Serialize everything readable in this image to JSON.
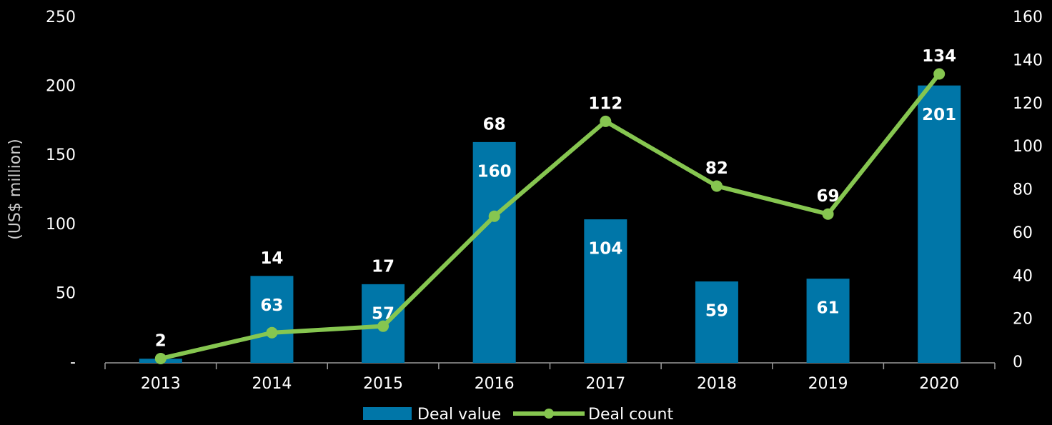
{
  "chart_data": {
    "type": "bar_line",
    "y_label": "(US$ million)",
    "categories": [
      "2013",
      "2014",
      "2015",
      "2016",
      "2017",
      "2018",
      "2019",
      "2020"
    ],
    "series": [
      {
        "name": "Deal value",
        "color": "#0076a8",
        "type": "bar",
        "values": [
          3,
          63,
          57,
          160,
          104,
          59,
          61,
          201
        ],
        "value_labels": [
          null,
          "63",
          "57",
          "160",
          "104",
          "59",
          "61",
          "201"
        ]
      },
      {
        "name": "Deal count",
        "color": "#86c650",
        "type": "line",
        "axis": "y2",
        "values": [
          2,
          14,
          17,
          68,
          112,
          82,
          69,
          134
        ]
      }
    ],
    "ylim": [
      0,
      250
    ],
    "yticks": [
      {
        "value": 0,
        "label": "-"
      },
      50,
      100,
      150,
      200,
      250
    ],
    "y2lim": [
      0,
      160
    ],
    "y2ticks": [
      0,
      20,
      40,
      60,
      80,
      100,
      120,
      140,
      160
    ],
    "legend": "bottom"
  }
}
